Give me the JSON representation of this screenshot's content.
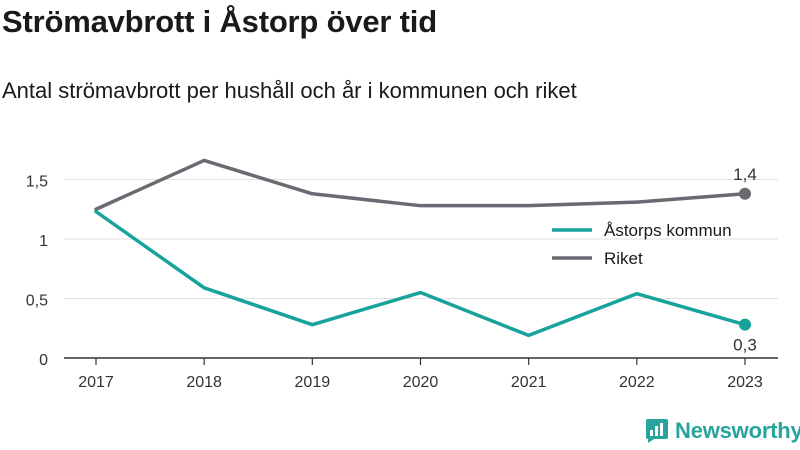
{
  "title": "Strömavbrott i Åstorp över tid",
  "subtitle": "Antal strömavbrott per hushåll och år i kommunen och riket",
  "brand": {
    "name": "Newsworthy",
    "icon": "newsworthy-logo-icon"
  },
  "chart_data": {
    "type": "line",
    "title": "Strömavbrott i Åstorp över tid",
    "subtitle": "Antal strömavbrott per hushåll och år i kommunen och riket",
    "xlabel": "",
    "ylabel": "",
    "categories": [
      "2017",
      "2018",
      "2019",
      "2020",
      "2021",
      "2022",
      "2023"
    ],
    "ylim": [
      0,
      1.7
    ],
    "yticks": [
      {
        "value": 0,
        "label": "0"
      },
      {
        "value": 0.5,
        "label": "0,5"
      },
      {
        "value": 1,
        "label": "1"
      },
      {
        "value": 1.5,
        "label": "1,5"
      }
    ],
    "grid": true,
    "legend_position": "right",
    "series": [
      {
        "name": "Åstorps kommun",
        "color": "#17a39b",
        "values": [
          1.23,
          0.59,
          0.28,
          0.55,
          0.19,
          0.54,
          0.28
        ],
        "end_label": "0,3",
        "end_label_position": "below"
      },
      {
        "name": "Riket",
        "color": "#6b6a72",
        "values": [
          1.25,
          1.66,
          1.38,
          1.28,
          1.28,
          1.31,
          1.38
        ],
        "end_label": "1,4",
        "end_label_position": "above"
      }
    ]
  }
}
